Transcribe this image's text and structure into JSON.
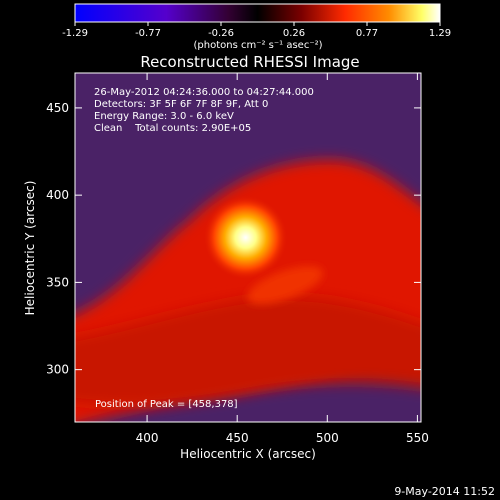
{
  "chart_data": {
    "type": "heatmap",
    "title": "Reconstructed RHESSI Image",
    "xlabel": "Heliocentric X (arcsec)",
    "ylabel": "Heliocentric Y (arcsec)",
    "xlim": [
      360,
      552
    ],
    "ylim": [
      270,
      470
    ],
    "xticks": [
      400,
      450,
      500,
      550
    ],
    "yticks": [
      300,
      350,
      400,
      450
    ],
    "colorbar": {
      "ticks": [
        "-1.29",
        "-0.77",
        "-0.26",
        "0.26",
        "0.77",
        "1.29"
      ],
      "min": -1.29,
      "max": 1.29,
      "unit_label": "(photons cm⁻² s⁻¹ asec⁻²)",
      "colormap": [
        "#0000ff",
        "#5500cc",
        "#330033",
        "#000000",
        "#7a0000",
        "#ff2a00",
        "#ff8c00",
        "#ffff66",
        "#ffffff"
      ]
    },
    "annotations": [
      "26-May-2012 04:24:36.000 to 04:27:44.000",
      "Detectors: 3F 5F 6F 7F 8F 9F, Att 0",
      "Energy Range: 3.0 - 6.0 keV",
      "Clean    Total counts: 2.90E+05"
    ],
    "peak_label": "Position of Peak = [458,378]",
    "peak": [
      458,
      378
    ],
    "colors": {
      "background": "#000000",
      "haze": "#4a2266",
      "emission": "#e01800",
      "peak_core": "#ffffff"
    }
  },
  "footer": {
    "date": "9-May-2014 11:52"
  }
}
